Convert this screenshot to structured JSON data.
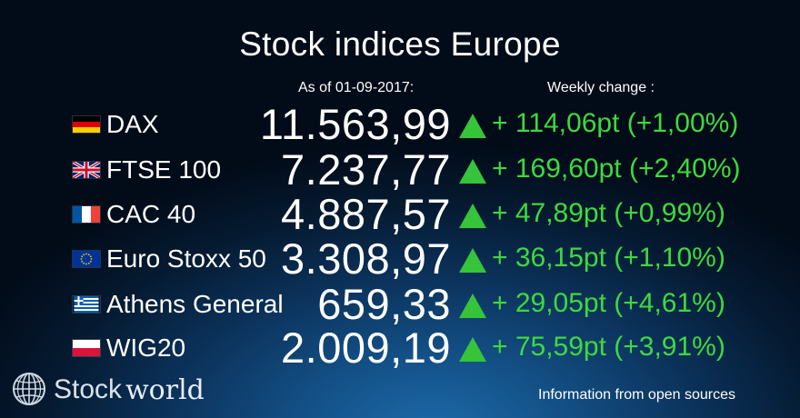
{
  "title": "Stock indices Europe",
  "header": {
    "date_label": "As of 01-09-2017:",
    "change_label": "Weekly change :"
  },
  "rows": [
    {
      "flag": "germany-flag",
      "name": "DAX",
      "value": "11.563,99",
      "change": "+ 114,06pt (+1,00%)",
      "direction": "up"
    },
    {
      "flag": "uk-flag",
      "name": "FTSE 100",
      "value": "7.237,77",
      "change": "+ 169,60pt (+2,40%)",
      "direction": "up"
    },
    {
      "flag": "france-flag",
      "name": "CAC 40",
      "value": "4.887,57",
      "change": "+ 47,89pt (+0,99%)",
      "direction": "up"
    },
    {
      "flag": "eu-flag",
      "name": "Euro Stoxx 50",
      "value": "3.308,97",
      "change": "+ 36,15pt (+1,10%)",
      "direction": "up"
    },
    {
      "flag": "greece-flag",
      "name": "Athens General",
      "value": "659,33",
      "change": "+ 29,05pt (+4,61%)",
      "direction": "up"
    },
    {
      "flag": "poland-flag",
      "name": "WIG20",
      "value": "2.009,19",
      "change": "+ 75,59pt (+3,91%)",
      "direction": "up"
    }
  ],
  "logo": {
    "stock": "Stock",
    "world": "world",
    "icon": "globe-icon"
  },
  "footer": "Information from open sources",
  "colors": {
    "up": "#35c43a",
    "change_text": "#3ed93f",
    "background_center": "#1d6bab",
    "background_edge": "#020b18"
  }
}
